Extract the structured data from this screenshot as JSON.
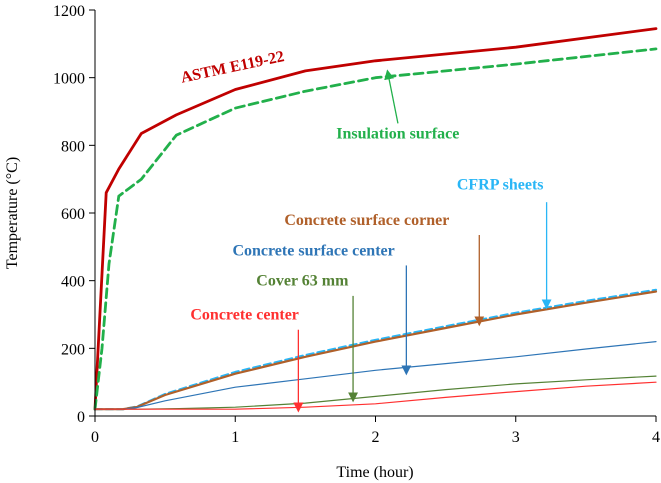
{
  "chart_data": {
    "type": "line",
    "title": "",
    "xlabel": "Time (hour)",
    "ylabel": "Temperature (°C)",
    "xlim": [
      0,
      4
    ],
    "ylim": [
      0,
      1200
    ],
    "xticks": [
      "0",
      "1",
      "2",
      "3",
      "4"
    ],
    "yticks": [
      "0",
      "200",
      "400",
      "600",
      "800",
      "1000",
      "1200"
    ],
    "grid": false,
    "legend": "none",
    "series": [
      {
        "name": "ASTM E119-22",
        "color": "#c00000",
        "dash": "solid",
        "weight": "thick",
        "x": [
          0,
          0.08,
          0.17,
          0.33,
          0.58,
          1.0,
          1.5,
          2.0,
          3.0,
          4.0
        ],
        "y": [
          20,
          660,
          730,
          835,
          890,
          965,
          1020,
          1050,
          1090,
          1145
        ]
      },
      {
        "name": "Insulation surface",
        "color": "#22b04b",
        "dash": "dashed",
        "weight": "thick",
        "x": [
          0,
          0.05,
          0.1,
          0.17,
          0.33,
          0.58,
          1.0,
          1.5,
          2.0,
          3.0,
          4.0
        ],
        "y": [
          20,
          200,
          450,
          650,
          700,
          830,
          910,
          960,
          1000,
          1040,
          1085
        ]
      },
      {
        "name": "CFRP sheets",
        "color": "#29b6f6",
        "dash": "dashed",
        "weight": "medium",
        "x": [
          0,
          0.2,
          0.3,
          0.5,
          1.0,
          1.5,
          2.0,
          2.5,
          3.0,
          3.5,
          4.0
        ],
        "y": [
          20,
          20,
          28,
          65,
          130,
          180,
          225,
          265,
          305,
          340,
          373
        ]
      },
      {
        "name": "Concrete surface corner",
        "color": "#b0602a",
        "dash": "solid",
        "weight": "medium",
        "x": [
          0,
          0.2,
          0.3,
          0.5,
          1.0,
          1.5,
          2.0,
          2.5,
          3.0,
          3.5,
          4.0
        ],
        "y": [
          20,
          20,
          27,
          62,
          125,
          175,
          220,
          260,
          300,
          335,
          368
        ]
      },
      {
        "name": "Concrete surface center",
        "color": "#2e75b6",
        "dash": "solid",
        "weight": "thin",
        "x": [
          0,
          0.2,
          0.3,
          0.5,
          1.0,
          1.5,
          2.0,
          2.5,
          3.0,
          3.5,
          4.0
        ],
        "y": [
          20,
          20,
          25,
          45,
          85,
          110,
          135,
          155,
          175,
          198,
          220
        ]
      },
      {
        "name": "Cover 63 mm",
        "color": "#548235",
        "dash": "solid",
        "weight": "thin",
        "x": [
          0,
          0.3,
          0.6,
          1.0,
          1.5,
          2.0,
          2.5,
          3.0,
          3.5,
          4.0
        ],
        "y": [
          20,
          20,
          22,
          26,
          38,
          58,
          78,
          95,
          107,
          118
        ]
      },
      {
        "name": "Concrete center",
        "color": "#ff3030",
        "dash": "solid",
        "weight": "thin",
        "x": [
          0,
          0.5,
          1.0,
          1.5,
          2.0,
          2.5,
          3.0,
          3.5,
          4.0
        ],
        "y": [
          20,
          20,
          20,
          26,
          36,
          55,
          72,
          88,
          100
        ]
      }
    ],
    "annotations": [
      {
        "text": "ASTM E119-22",
        "color": "#c00000",
        "x": 0.62,
        "y": 985,
        "rotate": -12
      },
      {
        "text": "Insulation surface",
        "color": "#22b04b",
        "x": 1.72,
        "y": 820,
        "arrow_from": [
          2.16,
          865
        ],
        "arrow_to": [
          2.09,
          1010
        ]
      },
      {
        "text": "CFRP sheets",
        "color": "#29b6f6",
        "x": 2.58,
        "y": 670,
        "arrow_from": [
          3.22,
          632
        ],
        "arrow_to": [
          3.22,
          330
        ]
      },
      {
        "text": "Concrete surface corner",
        "color": "#b0602a",
        "x": 1.35,
        "y": 565,
        "arrow_from": [
          2.74,
          535
        ],
        "arrow_to": [
          2.74,
          280
        ]
      },
      {
        "text": "Concrete surface center",
        "color": "#2e75b6",
        "x": 0.98,
        "y": 475,
        "arrow_from": [
          2.22,
          445
        ],
        "arrow_to": [
          2.22,
          135
        ]
      },
      {
        "text": "Cover 63 mm",
        "color": "#548235",
        "x": 1.15,
        "y": 385,
        "arrow_from": [
          1.84,
          355
        ],
        "arrow_to": [
          1.84,
          55
        ]
      },
      {
        "text": "Concrete center",
        "color": "#ff3030",
        "x": 0.68,
        "y": 285,
        "arrow_from": [
          1.45,
          255
        ],
        "arrow_to": [
          1.45,
          25
        ]
      }
    ]
  }
}
